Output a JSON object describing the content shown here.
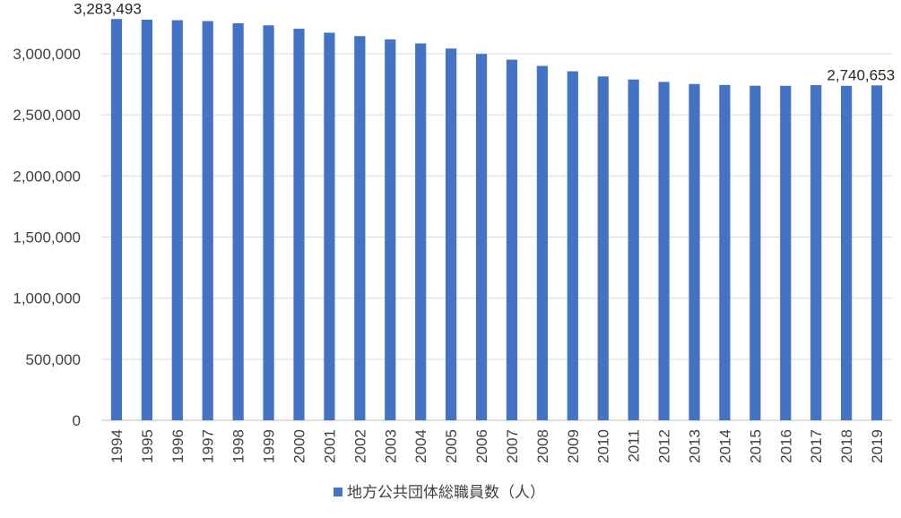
{
  "chart_data": {
    "type": "bar",
    "categories": [
      "1994",
      "1995",
      "1996",
      "1997",
      "1998",
      "1999",
      "2000",
      "2001",
      "2002",
      "2003",
      "2004",
      "2005",
      "2006",
      "2007",
      "2008",
      "2009",
      "2010",
      "2011",
      "2012",
      "2013",
      "2014",
      "2015",
      "2016",
      "2017",
      "2018",
      "2019"
    ],
    "series": [
      {
        "name": "地方公共団体総職員数（人）",
        "values": [
          3283493,
          3278000,
          3274000,
          3267000,
          3249000,
          3232000,
          3204000,
          3172000,
          3144000,
          3117000,
          3084000,
          3042000,
          2998000,
          2951000,
          2900000,
          2856000,
          2814000,
          2789000,
          2769000,
          2752000,
          2744000,
          2738000,
          2737000,
          2743000,
          2737000,
          2740653
        ],
        "color": "#4472C4"
      }
    ],
    "data_labels": [
      {
        "category": "1994",
        "text": "3,283,493"
      },
      {
        "category": "2019",
        "text": "2,740,653"
      }
    ],
    "ylim": [
      0,
      3300000
    ],
    "yticks": [
      0,
      500000,
      1000000,
      1500000,
      2000000,
      2500000,
      3000000
    ],
    "ytick_labels": [
      "0",
      "500,000",
      "1,000,000",
      "1,500,000",
      "2,000,000",
      "2,500,000",
      "3,000,000"
    ],
    "xlabel": "",
    "ylabel": "",
    "title": "",
    "grid": true,
    "legend": "bottom-center",
    "x_tick_rotation": "vertical"
  }
}
